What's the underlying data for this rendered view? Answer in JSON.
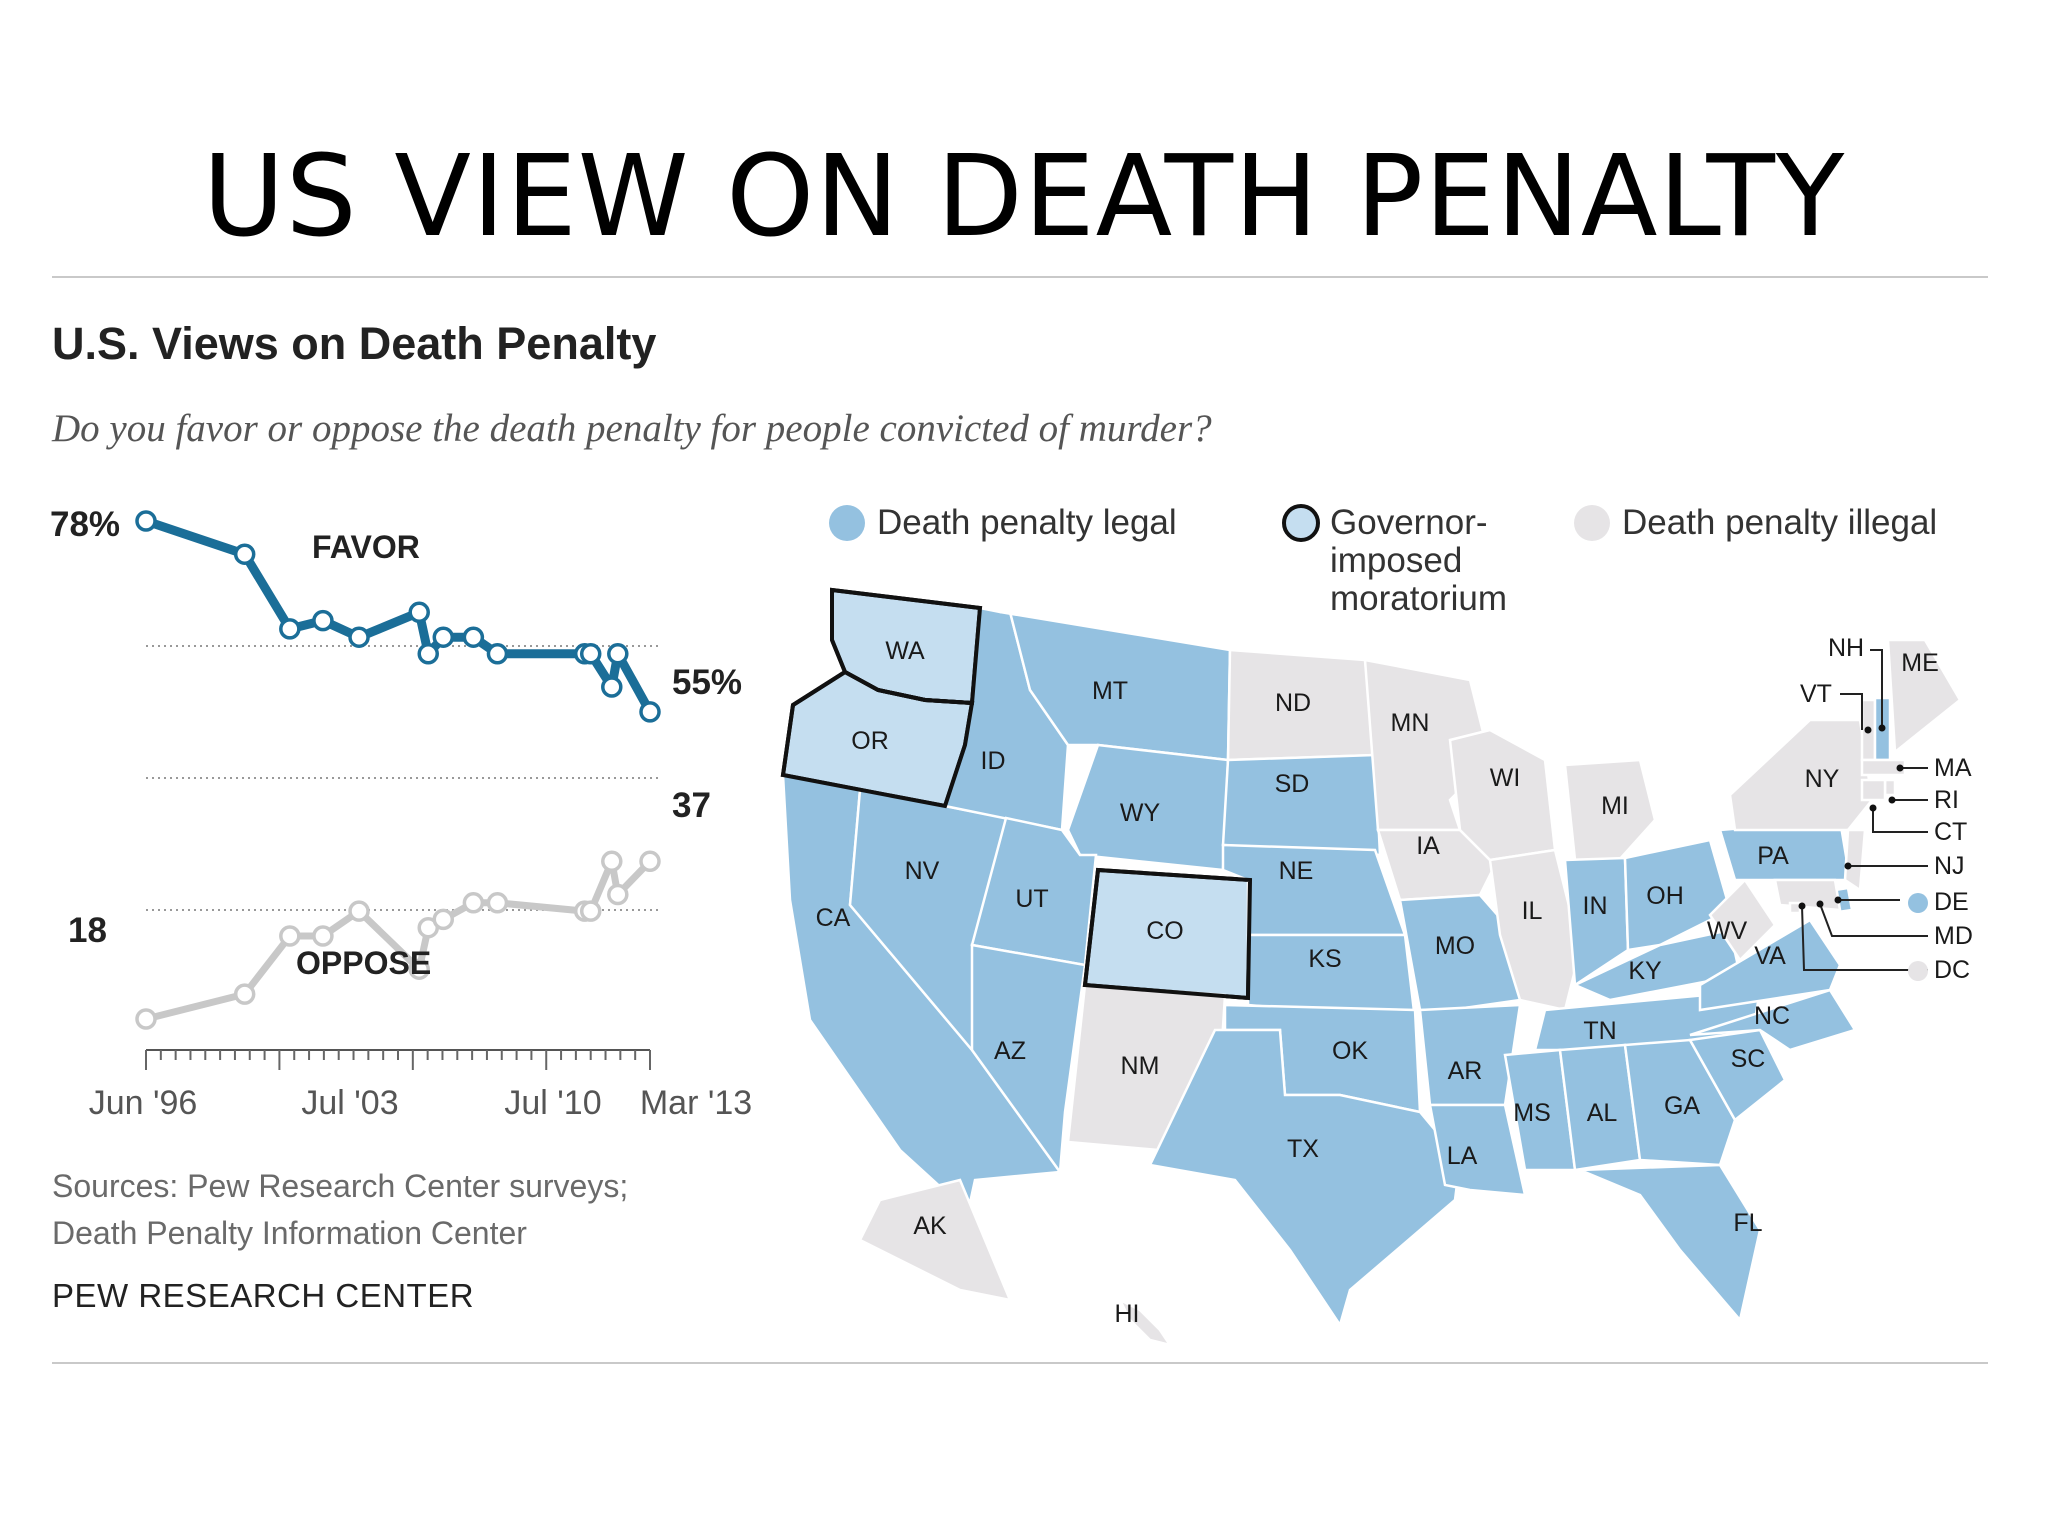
{
  "slide": {
    "title": "US VIEW ON DEATH PENALTY"
  },
  "header": {
    "title": "U.S. Views on Death Penalty",
    "subtitle": "Do you favor or oppose the death penalty for people convicted of murder?"
  },
  "colors": {
    "favor": "#1b6e98",
    "oppose": "#c8c8c8",
    "legal": "#94c1e0",
    "moratorium": "#c5def0",
    "illegal": "#e6e4e6",
    "text": "#1a1a1a"
  },
  "chart_data": {
    "type": "line",
    "title": "U.S. Views on Death Penalty",
    "subtitle": "Do you favor or oppose the death penalty for people convicted of murder?",
    "x_tick_labels": [
      "Jun '96",
      "Jul '03",
      "Jul '10",
      "Mar '13"
    ],
    "xlim": [
      1996.42,
      2013.17
    ],
    "grid": "dotted reference lines",
    "series": [
      {
        "name": "FAVOR",
        "start_label": "78%",
        "end_label": "55%",
        "x": [
          1996.42,
          1999.7,
          2001.2,
          2002.3,
          2003.5,
          2005.5,
          2005.8,
          2006.3,
          2007.3,
          2008.1,
          2011.0,
          2011.2,
          2011.9,
          2012.1,
          2013.17
        ],
        "values": [
          78,
          74,
          65,
          66,
          64,
          67,
          62,
          64,
          64,
          62,
          62,
          62,
          58,
          62,
          55
        ]
      },
      {
        "name": "OPPOSE",
        "start_label": "18",
        "end_label": "37",
        "x": [
          1996.42,
          1999.7,
          2001.2,
          2002.3,
          2003.5,
          2005.5,
          2005.8,
          2006.3,
          2007.3,
          2008.1,
          2011.0,
          2011.2,
          2011.9,
          2012.1,
          2013.17
        ],
        "values": [
          18,
          21,
          28,
          28,
          31,
          24,
          29,
          30,
          32,
          32,
          31,
          31,
          37,
          33,
          37
        ]
      }
    ],
    "map": {
      "type": "choropleth",
      "legend": [
        {
          "key": "legal",
          "label": "Death penalty legal"
        },
        {
          "key": "moratorium",
          "label": "Governor-imposed moratorium",
          "lines": [
            "Governor-",
            "imposed",
            "moratorium"
          ]
        },
        {
          "key": "illegal",
          "label": "Death penalty illegal"
        }
      ],
      "states": [
        {
          "id": "WA",
          "status": "moratorium"
        },
        {
          "id": "OR",
          "status": "moratorium"
        },
        {
          "id": "CO",
          "status": "moratorium"
        },
        {
          "id": "CA",
          "status": "legal"
        },
        {
          "id": "NV",
          "status": "legal"
        },
        {
          "id": "ID",
          "status": "legal"
        },
        {
          "id": "MT",
          "status": "legal"
        },
        {
          "id": "WY",
          "status": "legal"
        },
        {
          "id": "UT",
          "status": "legal"
        },
        {
          "id": "AZ",
          "status": "legal"
        },
        {
          "id": "NM",
          "status": "illegal"
        },
        {
          "id": "ND",
          "status": "illegal"
        },
        {
          "id": "SD",
          "status": "legal"
        },
        {
          "id": "NE",
          "status": "legal"
        },
        {
          "id": "KS",
          "status": "legal"
        },
        {
          "id": "OK",
          "status": "legal"
        },
        {
          "id": "TX",
          "status": "legal"
        },
        {
          "id": "MN",
          "status": "illegal"
        },
        {
          "id": "IA",
          "status": "illegal"
        },
        {
          "id": "MO",
          "status": "legal"
        },
        {
          "id": "AR",
          "status": "legal"
        },
        {
          "id": "LA",
          "status": "legal"
        },
        {
          "id": "WI",
          "status": "illegal"
        },
        {
          "id": "IL",
          "status": "illegal"
        },
        {
          "id": "MI",
          "status": "illegal"
        },
        {
          "id": "IN",
          "status": "legal"
        },
        {
          "id": "OH",
          "status": "legal"
        },
        {
          "id": "KY",
          "status": "legal"
        },
        {
          "id": "TN",
          "status": "legal"
        },
        {
          "id": "MS",
          "status": "legal"
        },
        {
          "id": "AL",
          "status": "legal"
        },
        {
          "id": "GA",
          "status": "legal"
        },
        {
          "id": "FL",
          "status": "legal"
        },
        {
          "id": "SC",
          "status": "legal"
        },
        {
          "id": "NC",
          "status": "legal"
        },
        {
          "id": "VA",
          "status": "legal"
        },
        {
          "id": "WV",
          "status": "illegal"
        },
        {
          "id": "PA",
          "status": "legal"
        },
        {
          "id": "NY",
          "status": "illegal"
        },
        {
          "id": "VT",
          "status": "illegal"
        },
        {
          "id": "NH",
          "status": "legal"
        },
        {
          "id": "ME",
          "status": "illegal"
        },
        {
          "id": "MA",
          "status": "illegal"
        },
        {
          "id": "RI",
          "status": "illegal"
        },
        {
          "id": "CT",
          "status": "illegal"
        },
        {
          "id": "NJ",
          "status": "illegal"
        },
        {
          "id": "DE",
          "status": "legal"
        },
        {
          "id": "MD",
          "status": "illegal"
        },
        {
          "id": "DC",
          "status": "illegal"
        },
        {
          "id": "AK",
          "status": "illegal"
        },
        {
          "id": "HI",
          "status": "illegal"
        }
      ]
    }
  },
  "footer": {
    "sources_line1": "Sources: Pew Research Center surveys;",
    "sources_line2": "Death Penalty Information Center",
    "brand": "PEW RESEARCH CENTER"
  }
}
